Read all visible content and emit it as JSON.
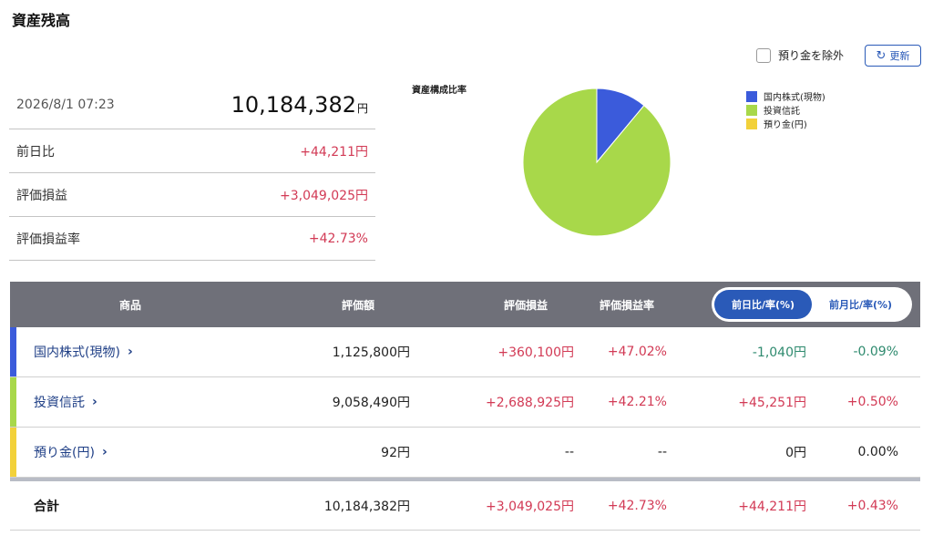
{
  "page_title": "資産残高",
  "controls": {
    "exclude_deposit_label": "預り金を除外",
    "refresh_label": "更新"
  },
  "summary": {
    "datetime": "2026/8/1 07:23",
    "total_value": "10,184,382",
    "total_unit": "円",
    "rows": [
      {
        "label": "前日比",
        "value": "+44,211円"
      },
      {
        "label": "評価損益",
        "value": "+3,049,025円"
      },
      {
        "label": "評価損益率",
        "value": "+42.73%"
      }
    ]
  },
  "chart_data": {
    "type": "pie",
    "title": "資産構成比率",
    "legend_position": "right",
    "labels": [
      "国内株式(現物)",
      "投資信託",
      "預り金(円)"
    ],
    "values": [
      1125800,
      9058490,
      92
    ],
    "colors": [
      "#3b5bdb",
      "#a8d84a",
      "#f2d13a"
    ]
  },
  "table": {
    "headers": {
      "product": "商品",
      "valuation": "評価額",
      "pnl": "評価損益",
      "pnl_rate": "評価損益率"
    },
    "toggle": {
      "daily": "前日比/率(%)",
      "monthly": "前月比/率(%)",
      "active": "daily"
    },
    "rows": [
      {
        "name": "国内株式(現物)",
        "color": "#3b5bdb",
        "valuation": "1,125,800円",
        "pnl": "+360,100円",
        "pnl_rate": "+47.02%",
        "change": "-1,040円",
        "change_rate": "-0.09%",
        "pnl_sign": "pos",
        "change_sign": "neg"
      },
      {
        "name": "投資信託",
        "color": "#a8d84a",
        "valuation": "9,058,490円",
        "pnl": "+2,688,925円",
        "pnl_rate": "+42.21%",
        "change": "+45,251円",
        "change_rate": "+0.50%",
        "pnl_sign": "pos",
        "change_sign": "pos"
      },
      {
        "name": "預り金(円)",
        "color": "#f2d13a",
        "valuation": "92円",
        "pnl": "--",
        "pnl_rate": "--",
        "change": "0円",
        "change_rate": "0.00%",
        "pnl_sign": "none",
        "change_sign": "none"
      }
    ],
    "total": {
      "name": "合計",
      "valuation": "10,184,382円",
      "pnl": "+3,049,025円",
      "pnl_rate": "+42.73%",
      "change": "+44,211円",
      "change_rate": "+0.43%"
    }
  }
}
